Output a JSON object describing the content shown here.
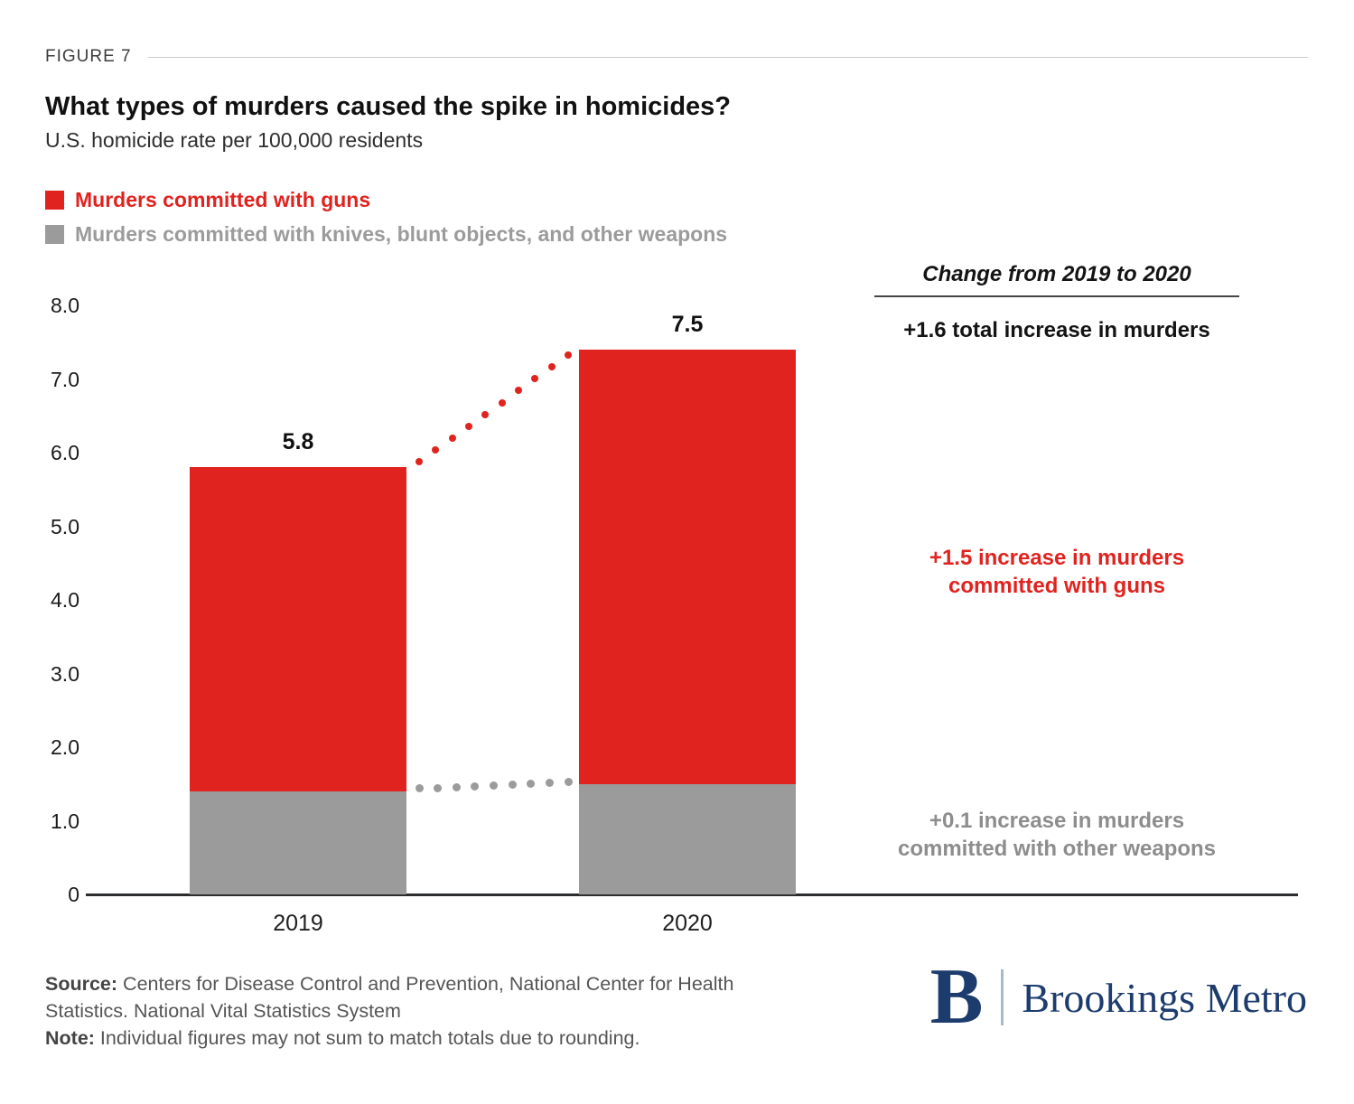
{
  "figure_label": "FIGURE 7",
  "title": "What types of murders caused the spike in homicides?",
  "subtitle": "U.S. homicide rate per 100,000 residents",
  "legend": {
    "items": [
      {
        "label": "Murders committed with guns",
        "color": "#e0231f"
      },
      {
        "label": "Murders committed with knives, blunt objects, and other weapons",
        "color": "#9b9b9b"
      }
    ]
  },
  "chart_data": {
    "type": "bar",
    "stacked": true,
    "title": "What types of murders caused the spike in homicides?",
    "subtitle": "U.S. homicide rate per 100,000 residents",
    "categories": [
      "2019",
      "2020"
    ],
    "series": [
      {
        "name": "Murders committed with knives, blunt objects, and other weapons",
        "color": "#9b9b9b",
        "values": [
          1.4,
          1.5
        ]
      },
      {
        "name": "Murders committed with guns",
        "color": "#e0231f",
        "values": [
          4.4,
          5.9
        ]
      }
    ],
    "totals": [
      5.8,
      7.5
    ],
    "total_labels": [
      "5.8",
      "7.5"
    ],
    "ylim": [
      0,
      8
    ],
    "ytick_values": [
      8,
      7,
      6,
      5,
      4,
      3,
      2,
      1,
      0
    ],
    "ytick_labels": [
      "8.0",
      "7.0",
      "6.0",
      "5.0",
      "4.0",
      "3.0",
      "2.0",
      "1.0",
      "0"
    ],
    "grid": false,
    "legend_position": "top-left",
    "connectors": [
      {
        "from": "2019 total",
        "to": "2020 total",
        "style": "dotted",
        "color": "#e0231f"
      },
      {
        "from": "2019 other-weapons top",
        "to": "2020 other-weapons top",
        "style": "dotted",
        "color": "#9b9b9b"
      }
    ]
  },
  "annotations": {
    "heading": "Change from 2019 to 2020",
    "items": [
      {
        "id": "total",
        "text": "+1.6 total increase in murders",
        "color": "#141414"
      },
      {
        "id": "guns",
        "text": "+1.5 increase in murders\ncommitted with guns",
        "color": "#e0231f"
      },
      {
        "id": "other",
        "text": "+0.1 increase in murders\ncommitted with other weapons",
        "color": "#8d8d8d"
      }
    ]
  },
  "footer": {
    "source_label": "Source:",
    "source_text": "Centers for Disease Control and Prevention, National Center for Health Statistics. National Vital Statistics System",
    "note_label": "Note:",
    "note_text": "Individual figures may not sum to match totals due to rounding."
  },
  "brand": {
    "logo_letter": "B",
    "name": "Brookings Metro",
    "color": "#1d3c6e",
    "divider_color": "#a9b9cc"
  }
}
